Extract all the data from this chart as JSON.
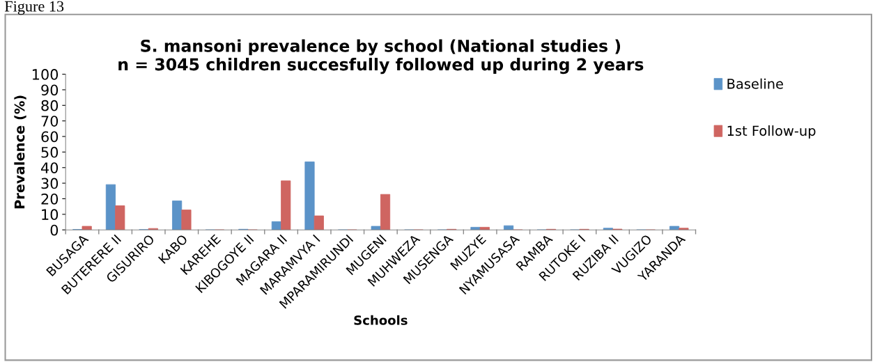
{
  "chart_data": {
    "type": "bar",
    "title": "S. mansoni prevalence by school (National studies )\nn = 3045 children succesfully followed up during 2 years",
    "xlabel": "Schools",
    "ylabel": "Prevalence (%)",
    "categories": [
      "BUSAGA",
      "BUTERERE II",
      "GISURIRO",
      "KABO",
      "KAREHE",
      "KIBOGOYE II",
      "MAGARA II",
      "MARAMVYA I",
      "MPARAMIRUNDI",
      "MUGENI",
      "MUHWEZA",
      "MUSENGA",
      "MUZYE",
      "NYAMUSASA",
      "RAMBA",
      "RUTOKE I",
      "RUZIBA II",
      "VUGIZO",
      "YARANDA"
    ],
    "series": [
      {
        "name": "Baseline",
        "color": "#5b93c8",
        "values": [
          0.3,
          29.1,
          0.2,
          18.6,
          0,
          0.4,
          5.3,
          43.7,
          0,
          2.3,
          0,
          0,
          1.7,
          2.7,
          0,
          0,
          1.1,
          0,
          2.3
        ]
      },
      {
        "name": "1st Follow-up",
        "color": "#cf6561",
        "values": [
          2.3,
          15.5,
          0.9,
          12.8,
          0,
          0,
          31.5,
          9.0,
          0,
          22.8,
          0,
          0.4,
          1.7,
          0,
          0.4,
          0.4,
          0.5,
          0,
          1.1
        ]
      }
    ],
    "ylim": [
      0,
      100
    ],
    "yticks": [
      0,
      10,
      20,
      30,
      40,
      50,
      60,
      70,
      80,
      90,
      100
    ],
    "grid": false,
    "legend": "right",
    "annotations": [
      "Figure 13"
    ]
  }
}
